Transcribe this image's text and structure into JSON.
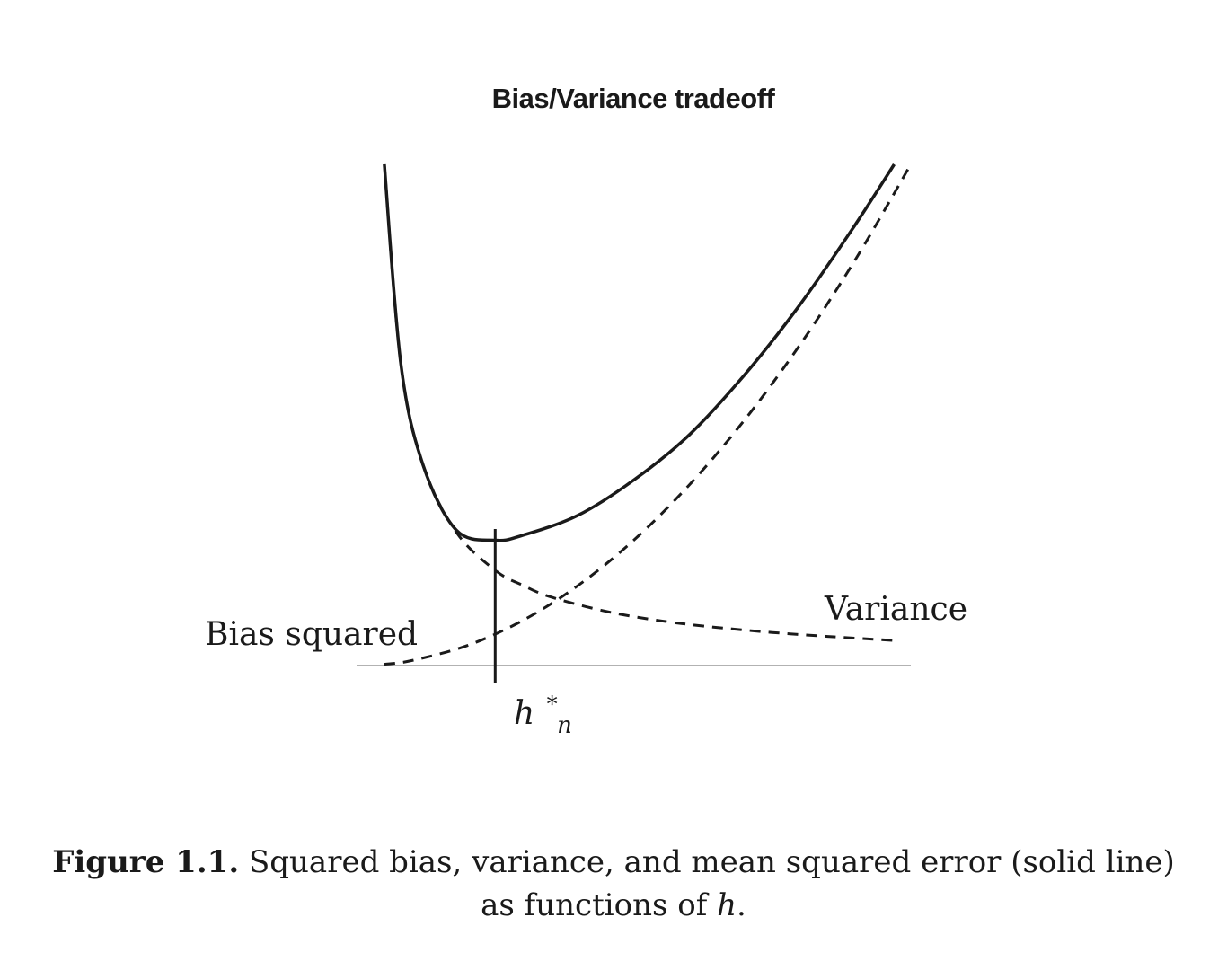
{
  "chart_data": {
    "type": "line",
    "title": "Bias/Variance tradeoff",
    "xlabel": "",
    "ylabel": "",
    "xlim": [
      0,
      1
    ],
    "ylim": [
      0,
      1
    ],
    "grid": false,
    "legend": "none",
    "series": [
      {
        "name": "Variance",
        "style": "dashed",
        "color": "#1a1a1a",
        "x": [
          0.05,
          0.08,
          0.12,
          0.18,
          0.25,
          0.3,
          0.35,
          0.45,
          0.55,
          0.65,
          0.75,
          0.85,
          0.97
        ],
        "values": [
          1.0,
          0.6,
          0.4,
          0.266,
          0.19,
          0.16,
          0.137,
          0.108,
          0.089,
          0.076,
          0.066,
          0.058,
          0.05
        ]
      },
      {
        "name": "Bias squared",
        "style": "dashed",
        "color": "#1a1a1a",
        "x": [
          0.05,
          0.1,
          0.2,
          0.3,
          0.4,
          0.5,
          0.6,
          0.7,
          0.8,
          0.9,
          1.0
        ],
        "values": [
          0.0025,
          0.01,
          0.04,
          0.09,
          0.16,
          0.25,
          0.36,
          0.49,
          0.64,
          0.81,
          1.0
        ]
      },
      {
        "name": "Mean squared error",
        "style": "solid",
        "color": "#1a1a1a",
        "x": [
          0.05,
          0.08,
          0.12,
          0.18,
          0.25,
          0.3,
          0.4,
          0.5,
          0.6,
          0.7,
          0.8,
          0.9,
          0.97
        ],
        "values": [
          1.0,
          0.6,
          0.4,
          0.27,
          0.25,
          0.26,
          0.3,
          0.37,
          0.46,
          0.58,
          0.72,
          0.88,
          1.0
        ]
      }
    ],
    "marker": {
      "label_main": "h",
      "label_sup": "*",
      "label_sub": "n",
      "x": 0.25
    },
    "annotations": {
      "left": "Bias squared",
      "right": "Variance"
    }
  },
  "caption": {
    "label": "Figure 1.1.",
    "text_line1": " Squared bias, variance, and mean squared error (solid line)",
    "text_line2_prefix": "as functions of ",
    "text_line2_math": "h",
    "text_line2_suffix": "."
  }
}
